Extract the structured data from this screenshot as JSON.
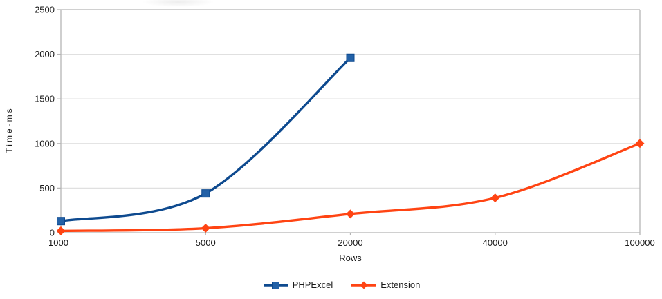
{
  "chart_data": {
    "type": "line",
    "title": "",
    "xlabel": "Rows",
    "ylabel": "Time-ms",
    "categories": [
      "1000",
      "5000",
      "20000",
      "40000",
      "100000"
    ],
    "y_axis": {
      "min": 0,
      "max": 2500,
      "step": 500,
      "ticks": [
        "0",
        "500",
        "1000",
        "1500",
        "2000",
        "2500"
      ]
    },
    "grid": "horizontal-only",
    "legend_position": "bottom-center",
    "series": [
      {
        "name": "PHPExcel",
        "marker": "square",
        "line_color": "#0e4a8f",
        "marker_color": "#2361a7",
        "values": [
          130,
          440,
          1960,
          null,
          null
        ]
      },
      {
        "name": "Extension",
        "marker": "diamond",
        "line_color": "#ff4413",
        "marker_color": "#ff4413",
        "values": [
          20,
          50,
          210,
          390,
          1000
        ]
      }
    ]
  },
  "colors": {
    "background": "#ffffff",
    "grid": "#e0e0e0",
    "axis": "#b5b5b5",
    "text": "#1a1a1a"
  }
}
